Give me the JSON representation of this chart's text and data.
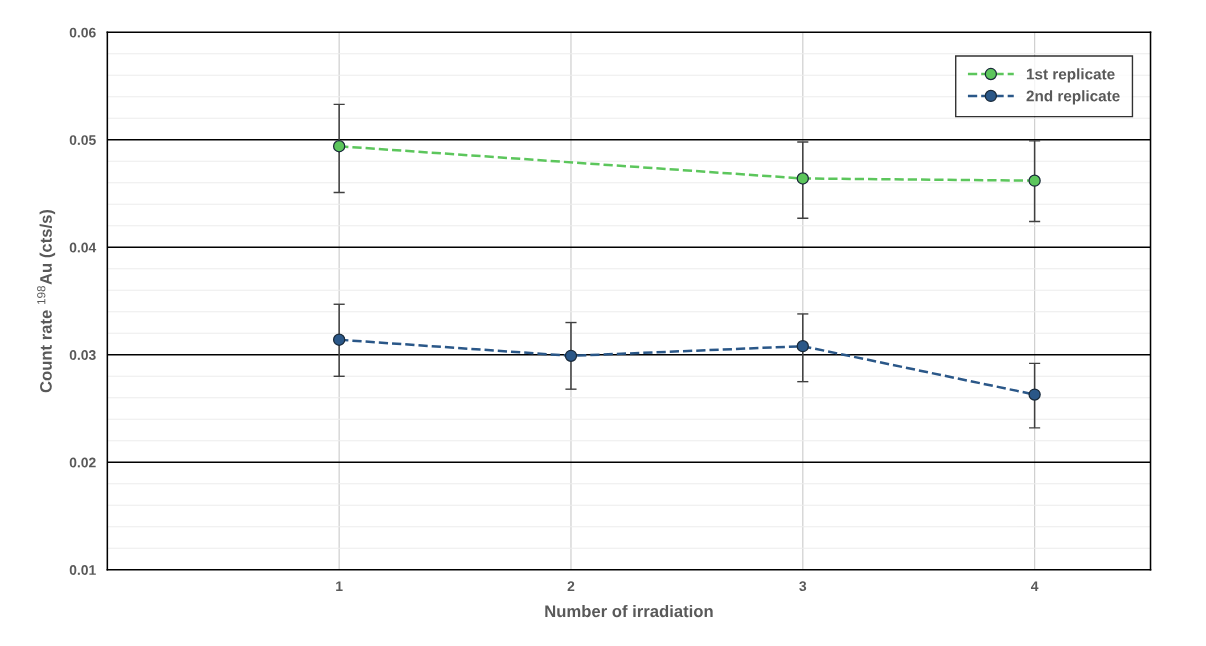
{
  "chart_data": {
    "type": "line",
    "xlabel": "Number of irradiation",
    "ylabel": "Count rate $^{198}$Au (cts/s)",
    "x": [
      1,
      2,
      3,
      4
    ],
    "xlim": [
      0,
      4.5
    ],
    "xticks": [
      1,
      2,
      3,
      4
    ],
    "ylim": [
      0.01,
      0.06
    ],
    "yticks": [
      0.01,
      0.02,
      0.03,
      0.04,
      0.05,
      0.06
    ],
    "grid": true,
    "legend": "top right",
    "marker": "circle",
    "line_style": "dashed",
    "series": [
      {
        "name": "1st replicate",
        "color": "#5cc65c",
        "values": [
          0.0494,
          null,
          0.0464,
          0.0462
        ],
        "errors": [
          [
            0.0451,
            0.0533
          ],
          null,
          [
            0.0427,
            0.0498
          ],
          [
            0.0424,
            0.0499
          ]
        ]
      },
      {
        "name": "2nd replicate",
        "color": "#2a5788",
        "values": [
          0.0314,
          0.0299,
          0.0308,
          0.0263
        ],
        "errors": [
          [
            0.028,
            0.0347
          ],
          [
            0.0268,
            0.033
          ],
          [
            0.0275,
            0.0338
          ],
          [
            0.0232,
            0.0292
          ]
        ]
      }
    ]
  }
}
